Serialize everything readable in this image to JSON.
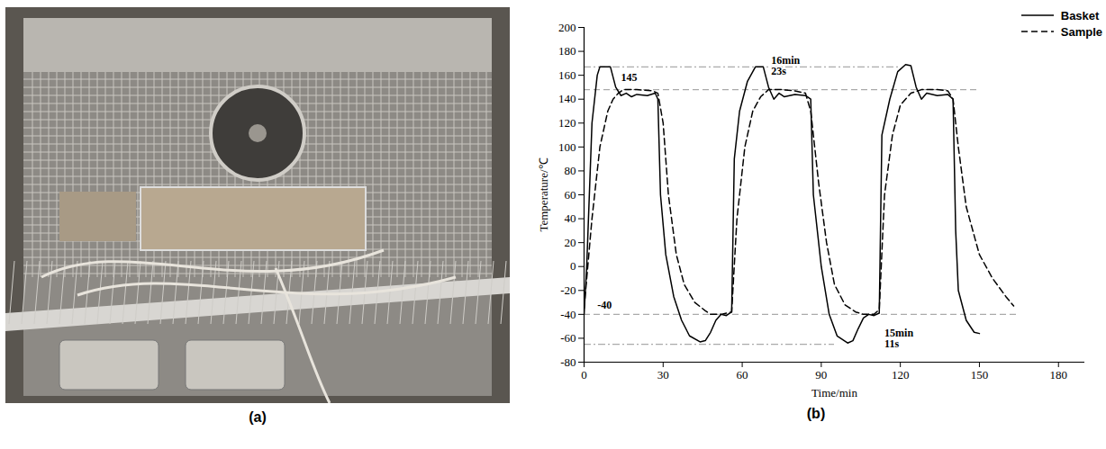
{
  "panels": [
    {
      "type": "photo",
      "label": "(a)"
    }
  ],
  "chart_data": {
    "type": "line",
    "panel_label": "(b)",
    "xlabel": "Time/min",
    "ylabel": "Temperature/℃",
    "xlim": [
      0,
      190
    ],
    "xticks": [
      0,
      30,
      60,
      90,
      120,
      150,
      180
    ],
    "ylim": [
      -80,
      200
    ],
    "yticks": [
      -80,
      -60,
      -40,
      -20,
      0,
      20,
      40,
      60,
      80,
      100,
      120,
      140,
      160,
      180,
      200
    ],
    "legend": "top-right",
    "series": [
      {
        "name": "Basket",
        "color": "#000000",
        "line_style": "solid",
        "x": [
          0,
          1,
          3,
          5,
          6,
          10,
          12,
          14,
          16,
          18,
          20,
          24,
          27,
          28,
          29,
          31,
          34,
          37,
          40,
          44,
          46,
          48,
          50,
          52,
          54,
          56,
          57,
          59,
          62,
          65,
          68,
          70,
          72,
          74,
          76,
          80,
          84,
          86,
          87,
          90,
          93,
          96,
          100,
          102,
          104,
          106,
          108,
          110,
          112,
          113,
          116,
          119,
          122,
          124,
          126,
          128,
          130,
          134,
          138,
          140,
          141,
          142,
          145,
          148,
          150
        ],
        "values": [
          -40,
          0,
          120,
          160,
          167,
          167,
          150,
          143,
          145,
          142,
          144,
          143,
          145,
          140,
          60,
          10,
          -25,
          -45,
          -58,
          -63,
          -62,
          -55,
          -45,
          -40,
          -41,
          -38,
          90,
          130,
          155,
          167,
          167,
          150,
          140,
          145,
          142,
          144,
          143,
          140,
          60,
          0,
          -40,
          -58,
          -64,
          -62,
          -52,
          -43,
          -40,
          -41,
          -39,
          110,
          140,
          163,
          169,
          168,
          150,
          140,
          145,
          143,
          144,
          140,
          30,
          -20,
          -45,
          -55,
          -56
        ]
      },
      {
        "name": "Sample",
        "color": "#000000",
        "line_style": "dashed",
        "x": [
          0,
          3,
          6,
          9,
          11,
          13,
          15,
          20,
          26,
          28,
          30,
          32,
          35,
          38,
          42,
          46,
          48,
          52,
          56,
          58,
          61,
          64,
          67,
          70,
          75,
          80,
          84,
          86,
          89,
          92,
          95,
          99,
          103,
          106,
          110,
          112,
          114,
          117,
          120,
          124,
          128,
          134,
          138,
          140,
          142,
          145,
          150,
          155,
          160,
          163
        ],
        "values": [
          -35,
          40,
          100,
          130,
          140,
          145,
          148,
          148,
          147,
          145,
          120,
          60,
          10,
          -15,
          -30,
          -37,
          -40,
          -40,
          -38,
          40,
          100,
          130,
          142,
          148,
          148,
          147,
          145,
          130,
          70,
          20,
          -15,
          -32,
          -38,
          -40,
          -40,
          -36,
          60,
          110,
          135,
          145,
          148,
          148,
          147,
          140,
          100,
          50,
          10,
          -10,
          -25,
          -33
        ]
      }
    ],
    "reference_lines": [
      {
        "y": 167,
        "x": [
          0,
          120
        ],
        "line_style": "dashdot",
        "color": "#aaaaaa"
      },
      {
        "y": 148,
        "x": [
          0,
          150
        ],
        "line_style": "dashed",
        "color": "#aaaaaa"
      },
      {
        "y": -40,
        "x": [
          0,
          165
        ],
        "line_style": "dashed",
        "color": "#aaaaaa"
      },
      {
        "y": -65,
        "x": [
          0,
          95
        ],
        "line_style": "dashdot",
        "color": "#aaaaaa"
      }
    ],
    "annotations": [
      {
        "text": "145",
        "x": 14,
        "y": 158
      },
      {
        "text": "16min\n23s",
        "x": 71,
        "y": 168
      },
      {
        "text": "-40",
        "x": 5,
        "y": -32
      },
      {
        "text": "15min\n11s",
        "x": 114,
        "y": -60
      }
    ]
  }
}
